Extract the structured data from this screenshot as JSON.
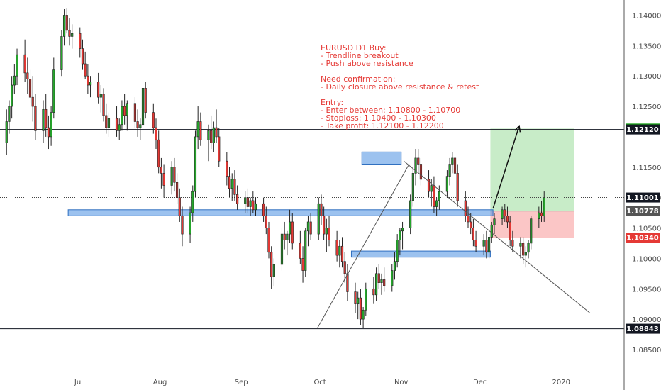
{
  "chart_data": {
    "type": "candlestick",
    "ylim": [
      1.0815,
      1.1425
    ],
    "date_range": [
      "2019-06-01",
      "2020-01-25"
    ],
    "grid": false,
    "y_ticks": [
      "1.14000",
      "1.13500",
      "1.13000",
      "1.12500",
      "1.11500",
      "1.11000",
      "1.10500",
      "1.10000",
      "1.09500",
      "1.09000",
      "1.08500"
    ],
    "x_ticks": [
      {
        "label": "Jul",
        "date": "2019-07-01"
      },
      {
        "label": "Aug",
        "date": "2019-08-01"
      },
      {
        "label": "Sep",
        "date": "2019-09-01"
      },
      {
        "label": "Oct",
        "date": "2019-10-01"
      },
      {
        "label": "Nov",
        "date": "2019-11-01"
      },
      {
        "label": "Dec",
        "date": "2019-12-01"
      },
      {
        "label": "2020",
        "date": "2020-01-01"
      }
    ],
    "candles_start_date": "2019-06-03",
    "candles": [
      [
        1.119,
        1.1245,
        1.117,
        1.1225
      ],
      [
        1.1225,
        1.126,
        1.1205,
        1.125
      ],
      [
        1.125,
        1.13,
        1.123,
        1.1285
      ],
      [
        1.1285,
        1.132,
        1.127,
        1.13
      ],
      [
        1.13,
        1.1345,
        1.1285,
        1.1335
      ],
      [
        1.1335,
        1.136,
        1.129,
        1.1305
      ],
      [
        1.1305,
        1.133,
        1.127,
        1.1295
      ],
      [
        1.1295,
        1.131,
        1.1255,
        1.1265
      ],
      [
        1.1265,
        1.13,
        1.1225,
        1.125
      ],
      [
        1.125,
        1.127,
        1.1195,
        1.121
      ],
      [
        1.121,
        1.126,
        1.119,
        1.1245
      ],
      [
        1.1245,
        1.127,
        1.12,
        1.1215
      ],
      [
        1.1215,
        1.1235,
        1.118,
        1.12
      ],
      [
        1.12,
        1.125,
        1.1185,
        1.124
      ],
      [
        1.124,
        1.133,
        1.123,
        1.131
      ],
      [
        1.131,
        1.1375,
        1.13,
        1.1365
      ],
      [
        1.1365,
        1.141,
        1.135,
        1.14
      ],
      [
        1.14,
        1.1412,
        1.137,
        1.1375
      ],
      [
        1.1375,
        1.1395,
        1.135,
        1.1365
      ],
      [
        1.1365,
        1.1385,
        1.1345,
        1.137
      ],
      [
        1.137,
        1.138,
        1.133,
        1.1345
      ],
      [
        1.1345,
        1.136,
        1.131,
        1.132
      ],
      [
        1.132,
        1.134,
        1.1295,
        1.13
      ],
      [
        1.13,
        1.132,
        1.127,
        1.1285
      ],
      [
        1.1285,
        1.13,
        1.1265,
        1.129
      ],
      [
        1.129,
        1.1305,
        1.1255,
        1.1265
      ],
      [
        1.1265,
        1.1285,
        1.124,
        1.127
      ],
      [
        1.127,
        1.128,
        1.1225,
        1.1235
      ],
      [
        1.1235,
        1.1255,
        1.1205,
        1.1215
      ],
      [
        1.1215,
        1.124,
        1.12,
        1.123
      ],
      [
        1.123,
        1.125,
        1.12,
        1.121
      ],
      [
        1.121,
        1.123,
        1.1195,
        1.122
      ],
      [
        1.122,
        1.126,
        1.121,
        1.125
      ],
      [
        1.125,
        1.127,
        1.122,
        1.1235
      ],
      [
        1.1235,
        1.126,
        1.121,
        1.1255
      ],
      [
        1.1255,
        1.1265,
        1.1215,
        1.1225
      ],
      [
        1.1225,
        1.1245,
        1.12,
        1.1215
      ],
      [
        1.1215,
        1.123,
        1.1195,
        1.122
      ],
      [
        1.122,
        1.1295,
        1.121,
        1.128
      ],
      [
        1.128,
        1.129,
        1.123,
        1.124
      ],
      [
        1.124,
        1.1255,
        1.1205,
        1.1215
      ],
      [
        1.1215,
        1.123,
        1.118,
        1.1195
      ],
      [
        1.1195,
        1.121,
        1.114,
        1.115
      ],
      [
        1.115,
        1.1165,
        1.1115,
        1.114
      ],
      [
        1.114,
        1.1155,
        1.11,
        1.112
      ],
      [
        1.112,
        1.116,
        1.1105,
        1.115
      ],
      [
        1.115,
        1.1165,
        1.111,
        1.1125
      ],
      [
        1.1125,
        1.114,
        1.109,
        1.11
      ],
      [
        1.11,
        1.1115,
        1.106,
        1.107
      ],
      [
        1.107,
        1.1085,
        1.102,
        1.104
      ],
      [
        1.104,
        1.1085,
        1.1025,
        1.1075
      ],
      [
        1.1075,
        1.112,
        1.106,
        1.111
      ],
      [
        1.111,
        1.121,
        1.11,
        1.12
      ],
      [
        1.12,
        1.125,
        1.118,
        1.1225
      ],
      [
        1.1225,
        1.124,
        1.1185,
        1.1195
      ],
      [
        1.1195,
        1.122,
        1.116,
        1.121
      ],
      [
        1.121,
        1.1235,
        1.118,
        1.119
      ],
      [
        1.119,
        1.1225,
        1.1175,
        1.1215
      ],
      [
        1.1215,
        1.1245,
        1.119,
        1.12
      ],
      [
        1.12,
        1.1215,
        1.115,
        1.116
      ],
      [
        1.116,
        1.1175,
        1.112,
        1.1135
      ],
      [
        1.1135,
        1.115,
        1.11,
        1.1115
      ],
      [
        1.1115,
        1.114,
        1.1095,
        1.113
      ],
      [
        1.113,
        1.1145,
        1.1095,
        1.1105
      ],
      [
        1.1105,
        1.112,
        1.108,
        1.109
      ],
      [
        1.109,
        1.111,
        1.1075,
        1.11
      ],
      [
        1.11,
        1.1115,
        1.1075,
        1.1085
      ],
      [
        1.1085,
        1.11,
        1.107,
        1.1095
      ],
      [
        1.1095,
        1.111,
        1.1075,
        1.108
      ],
      [
        1.108,
        1.11,
        1.107,
        1.109
      ],
      [
        1.109,
        1.11,
        1.106,
        1.107
      ],
      [
        1.107,
        1.1085,
        1.104,
        1.105
      ],
      [
        1.105,
        1.106,
        1.1,
        1.101
      ],
      [
        1.101,
        1.102,
        1.095,
        1.097
      ],
      [
        1.097,
        1.1,
        1.0955,
        1.099
      ],
      [
        1.099,
        1.105,
        1.098,
        1.104
      ],
      [
        1.104,
        1.106,
        1.1015,
        1.103
      ],
      [
        1.103,
        1.1045,
        1.1005,
        1.104
      ],
      [
        1.104,
        1.108,
        1.1025,
        1.106
      ],
      [
        1.106,
        1.1075,
        1.1015,
        1.1025
      ],
      [
        1.1025,
        1.1045,
        1.099,
        1.1
      ],
      [
        1.1,
        1.102,
        1.096,
        1.098
      ],
      [
        1.098,
        1.105,
        1.097,
        1.1045
      ],
      [
        1.1045,
        1.107,
        1.102,
        1.106
      ],
      [
        1.106,
        1.1075,
        1.103,
        1.104
      ],
      [
        1.104,
        1.11,
        1.103,
        1.109
      ],
      [
        1.109,
        1.1105,
        1.1055,
        1.107
      ],
      [
        1.107,
        1.1085,
        1.103,
        1.104
      ],
      [
        1.104,
        1.1065,
        1.101,
        1.105
      ],
      [
        1.105,
        1.107,
        1.102,
        1.103
      ],
      [
        1.103,
        1.1045,
        1.0995,
        1.1005
      ],
      [
        1.1005,
        1.103,
        1.0985,
        1.102
      ],
      [
        1.102,
        1.1035,
        1.0985,
        1.0995
      ],
      [
        1.0995,
        1.101,
        1.096,
        1.0975
      ],
      [
        1.0975,
        1.099,
        1.093,
        1.0945
      ],
      [
        1.0945,
        1.096,
        1.091,
        1.0925
      ],
      [
        1.0925,
        1.0945,
        1.09,
        1.0935
      ],
      [
        1.0935,
        1.095,
        1.089,
        1.09
      ],
      [
        1.09,
        1.092,
        1.0885,
        1.0915
      ],
      [
        1.0915,
        1.096,
        1.0905,
        1.095
      ],
      [
        1.095,
        1.097,
        1.0925,
        1.094
      ],
      [
        1.094,
        1.0985,
        1.093,
        1.0975
      ],
      [
        1.0975,
        1.099,
        1.095,
        1.096
      ],
      [
        1.096,
        1.0975,
        1.094,
        1.0965
      ],
      [
        1.0965,
        1.0985,
        1.0945,
        1.0955
      ],
      [
        1.0955,
        1.099,
        1.0945,
        1.098
      ],
      [
        1.098,
        1.101,
        1.0965,
        1.0995
      ],
      [
        1.0995,
        1.104,
        1.0985,
        1.103
      ],
      [
        1.103,
        1.105,
        1.1005,
        1.1045
      ],
      [
        1.1045,
        1.106,
        1.1015,
        1.105
      ],
      [
        1.105,
        1.1105,
        1.104,
        1.1095
      ],
      [
        1.1095,
        1.115,
        1.1085,
        1.114
      ],
      [
        1.114,
        1.118,
        1.112,
        1.1165
      ],
      [
        1.1165,
        1.118,
        1.114,
        1.1155
      ],
      [
        1.1155,
        1.1165,
        1.112,
        1.113
      ],
      [
        1.113,
        1.1145,
        1.11,
        1.111
      ],
      [
        1.111,
        1.113,
        1.1085,
        1.112
      ],
      [
        1.112,
        1.1135,
        1.1075,
        1.1085
      ],
      [
        1.1085,
        1.11,
        1.107,
        1.1095
      ],
      [
        1.1095,
        1.112,
        1.108,
        1.111
      ],
      [
        1.111,
        1.1145,
        1.11,
        1.1135
      ],
      [
        1.1135,
        1.1165,
        1.112,
        1.1155
      ],
      [
        1.1155,
        1.1175,
        1.114,
        1.1165
      ],
      [
        1.1165,
        1.1178,
        1.113,
        1.114
      ],
      [
        1.114,
        1.1155,
        1.1085,
        1.1095
      ],
      [
        1.1095,
        1.111,
        1.106,
        1.107
      ],
      [
        1.107,
        1.1085,
        1.105,
        1.106
      ],
      [
        1.106,
        1.1075,
        1.104,
        1.105
      ],
      [
        1.105,
        1.1065,
        1.102,
        1.103
      ],
      [
        1.103,
        1.1045,
        1.101,
        1.102
      ],
      [
        1.102,
        1.104,
        1.1005,
        1.103
      ],
      [
        1.103,
        1.1045,
        1.1,
        1.101
      ],
      [
        1.101,
        1.104,
        1.1,
        1.1035
      ],
      [
        1.1035,
        1.106,
        1.1025,
        1.1055
      ],
      [
        1.1055,
        1.1075,
        1.104,
        1.1065
      ],
      [
        1.1065,
        1.1085,
        1.1055,
        1.108
      ],
      [
        1.108,
        1.109,
        1.106,
        1.107
      ],
      [
        1.107,
        1.1085,
        1.105,
        1.106
      ],
      [
        1.106,
        1.107,
        1.102,
        1.103
      ],
      [
        1.103,
        1.1045,
        1.101,
        1.102
      ],
      [
        1.102,
        1.1035,
        1.1,
        1.1025
      ],
      [
        1.1025,
        1.1035,
        1.099,
        1.1005
      ],
      [
        1.1005,
        1.102,
        1.0985,
        1.101
      ],
      [
        1.101,
        1.103,
        1.1,
        1.1025
      ],
      [
        1.1025,
        1.107,
        1.1015,
        1.1065
      ],
      [
        1.1065,
        1.1085,
        1.105,
        1.1075
      ],
      [
        1.1075,
        1.1095,
        1.106,
        1.107
      ],
      [
        1.107,
        1.111,
        1.106,
        1.11
      ]
    ]
  },
  "trade_setup": {
    "tp_high": 1.12135,
    "entry": 1.10778,
    "stop": 1.1034,
    "box_start_date": "2019-12-05",
    "box_end_date": "2020-01-06"
  },
  "levels": [
    {
      "value": 1.12135,
      "label": "1.12135",
      "color": "#1aa51a",
      "line": false
    },
    {
      "value": 1.1212,
      "label": "1.12120",
      "color": "#131722",
      "line": true
    },
    {
      "value": 1.11001,
      "label": "1.11001",
      "color": "#131722",
      "line": "dotted"
    },
    {
      "value": 1.10778,
      "label": "1.10778",
      "color": "#555555",
      "line": false
    },
    {
      "value": 1.1034,
      "label": "1.10340",
      "color": "#e53935",
      "line": false
    },
    {
      "value": 1.08843,
      "label": "1.08843",
      "color": "#131722",
      "line": true
    }
  ],
  "zones": [
    {
      "from": "2019-06-27",
      "to": "2019-12-06",
      "low": 1.107,
      "high": 1.108
    },
    {
      "from": "2019-10-17",
      "to": "2019-11-01",
      "low": 1.1155,
      "high": 1.1175
    },
    {
      "from": "2019-10-13",
      "to": "2019-12-05",
      "low": 1.1002,
      "high": 1.1012
    }
  ],
  "trendlines": [
    {
      "from": [
        "2019-09-30",
        1.0885
      ],
      "to": [
        "2019-11-04",
        1.1155
      ]
    },
    {
      "from": [
        "2019-11-02",
        1.116
      ],
      "to": [
        "2020-01-12",
        1.091
      ]
    }
  ],
  "arrow": {
    "from": [
      "2019-12-06",
      1.1082
    ],
    "to": [
      "2019-12-16",
      1.1218
    ]
  },
  "annotation_lines": [
    "EURUSD D1 Buy:",
    "    - Trendline breakout",
    "    - Push above resistance",
    "",
    "Need confirmation:",
    "    - Daily closure above resistance & retest",
    "",
    "Entry:",
    "    - Enter between: 1.10800 - 1.10700",
    "    - Stoploss: 1.10400 - 1.10300",
    "    - Take profit: 1.12100 - 1.12200"
  ],
  "colors": {
    "up": "#26a62c",
    "down": "#e53935",
    "zone_fill": "#4a90e2",
    "profit": "#c8ecc8",
    "loss": "#fbc6c6",
    "annotation": "#e53935"
  }
}
